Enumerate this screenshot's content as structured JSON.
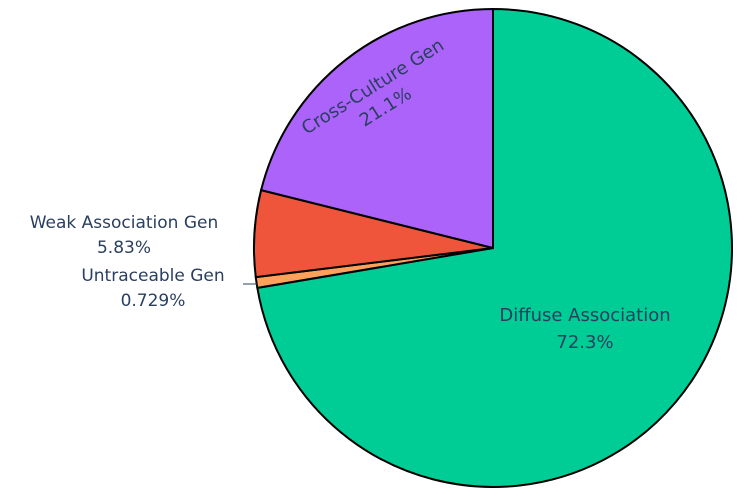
{
  "chart_data": {
    "type": "pie",
    "title": "",
    "legend": false,
    "slices": [
      {
        "label": "Diffuse Association",
        "percent_label": "72.3%",
        "value": 72.3,
        "color": "#00cc96"
      },
      {
        "label": "Untraceable Gen",
        "percent_label": "0.729%",
        "value": 0.729,
        "color": "#ffa15a"
      },
      {
        "label": "Weak Association Gen",
        "percent_label": "5.83%",
        "value": 5.83,
        "color": "#ef553b"
      },
      {
        "label": "Cross-Culture Gen",
        "percent_label": "21.1%",
        "value": 21.1,
        "color": "#ab63fa"
      }
    ]
  }
}
